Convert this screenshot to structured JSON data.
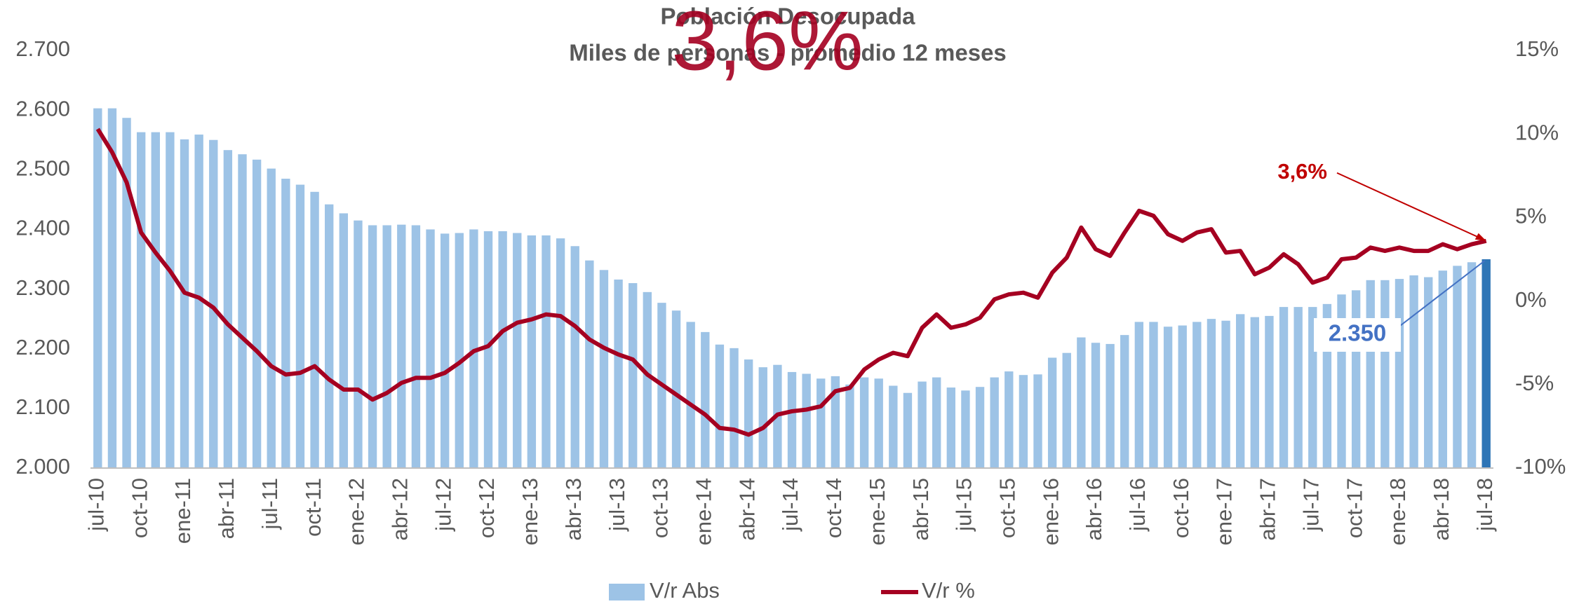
{
  "chart_data": {
    "type": "bar-line",
    "title": "Población Desocupada",
    "subtitle": "Miles de personas - promedio 12 meses",
    "overlay_text": "3,6%",
    "categories": [
      "jul-10",
      null,
      null,
      "oct-10",
      null,
      null,
      "ene-11",
      null,
      null,
      "abr-11",
      null,
      null,
      "jul-11",
      null,
      null,
      "oct-11",
      null,
      null,
      "ene-12",
      null,
      null,
      "abr-12",
      null,
      null,
      "jul-12",
      null,
      null,
      "oct-12",
      null,
      null,
      "ene-13",
      null,
      null,
      "abr-13",
      null,
      null,
      "jul-13",
      null,
      null,
      "oct-13",
      null,
      null,
      "ene-14",
      null,
      null,
      "abr-14",
      null,
      null,
      "jul-14",
      null,
      null,
      "oct-14",
      null,
      null,
      "ene-15",
      null,
      null,
      "abr-15",
      null,
      null,
      "jul-15",
      null,
      null,
      "oct-15",
      null,
      null,
      "ene-16",
      null,
      null,
      "abr-16",
      null,
      null,
      "jul-16",
      null,
      null,
      "oct-16",
      null,
      null,
      "ene-17",
      null,
      null,
      "abr-17",
      null,
      null,
      "jul-17",
      null,
      null,
      "oct-17",
      null,
      null,
      "ene-18",
      null,
      null,
      "abr-18",
      null,
      null,
      "jul-18"
    ],
    "series": [
      {
        "name": "V/r Abs",
        "type": "bar",
        "color": "#9dc3e6",
        "last_color": "#2e75b6",
        "label_color": "#4472c4",
        "values": [
          2603,
          2603,
          2587,
          2563,
          2563,
          2563,
          2551,
          2559,
          2550,
          2533,
          2526,
          2517,
          2502,
          2485,
          2475,
          2463,
          2442,
          2427,
          2415,
          2407,
          2407,
          2408,
          2407,
          2400,
          2393,
          2394,
          2400,
          2397,
          2397,
          2394,
          2390,
          2390,
          2385,
          2372,
          2348,
          2332,
          2316,
          2310,
          2295,
          2277,
          2264,
          2245,
          2228,
          2207,
          2201,
          2182,
          2169,
          2173,
          2161,
          2158,
          2150,
          2154,
          2140,
          2152,
          2150,
          2138,
          2126,
          2145,
          2152,
          2135,
          2130,
          2136,
          2152,
          2162,
          2156,
          2157,
          2185,
          2193,
          2219,
          2210,
          2208,
          2223,
          2245,
          2245,
          2237,
          2239,
          2245,
          2250,
          2247,
          2258,
          2253,
          2255,
          2270,
          2270,
          2270,
          2275,
          2291,
          2298,
          2315,
          2315,
          2317,
          2323,
          2320,
          2331,
          2339,
          2345,
          2350
        ],
        "value_labels": [
          null,
          null,
          null,
          null,
          null,
          null,
          null,
          null,
          null,
          null,
          null,
          null,
          null,
          null,
          null,
          null,
          null,
          null,
          null,
          null,
          null,
          null,
          null,
          null,
          null,
          null,
          null,
          null,
          null,
          null,
          null,
          null,
          null,
          null,
          null,
          null,
          null,
          null,
          null,
          null,
          null,
          null,
          null,
          null,
          null,
          null,
          null,
          null,
          null,
          null,
          null,
          null,
          null,
          null,
          null,
          null,
          null,
          null,
          null,
          null,
          null,
          null,
          null,
          null,
          null,
          null,
          null,
          null,
          null,
          null,
          null,
          null,
          null,
          null,
          null,
          null,
          null,
          null,
          null,
          null,
          null,
          null,
          null,
          null,
          null,
          null,
          null,
          null,
          null,
          null,
          null,
          null,
          null,
          null,
          null,
          null,
          "2.350"
        ]
      },
      {
        "name": "V/r %",
        "type": "line",
        "axis": "y2",
        "color": "#a50021",
        "label_color": "#c00000",
        "values": [
          10.3,
          8.9,
          7.1,
          4.1,
          2.9,
          1.8,
          0.5,
          0.2,
          -0.4,
          -1.4,
          -2.2,
          -3.0,
          -3.9,
          -4.4,
          -4.3,
          -3.9,
          -4.7,
          -5.3,
          -5.3,
          -5.9,
          -5.5,
          -4.9,
          -4.6,
          -4.6,
          -4.3,
          -3.7,
          -3.0,
          -2.7,
          -1.8,
          -1.3,
          -1.1,
          -0.8,
          -0.9,
          -1.5,
          -2.3,
          -2.8,
          -3.2,
          -3.5,
          -4.4,
          -5.0,
          -5.6,
          -6.2,
          -6.8,
          -7.6,
          -7.7,
          -8.0,
          -7.6,
          -6.8,
          -6.6,
          -6.5,
          -6.3,
          -5.4,
          -5.2,
          -4.1,
          -3.5,
          -3.1,
          -3.3,
          -1.6,
          -0.8,
          -1.6,
          -1.4,
          -1.0,
          0.1,
          0.4,
          0.5,
          0.2,
          1.7,
          2.6,
          4.4,
          3.1,
          2.7,
          4.1,
          5.4,
          5.1,
          4.0,
          3.6,
          4.1,
          4.3,
          2.9,
          3.0,
          1.6,
          2.0,
          2.8,
          2.2,
          1.1,
          1.4,
          2.5,
          2.6,
          3.2,
          3.0,
          3.2,
          3.0,
          3.0,
          3.4,
          3.1,
          3.4,
          3.6
        ],
        "value_labels": [
          null,
          null,
          null,
          null,
          null,
          null,
          null,
          null,
          null,
          null,
          null,
          null,
          null,
          null,
          null,
          null,
          null,
          null,
          null,
          null,
          null,
          null,
          null,
          null,
          null,
          null,
          null,
          null,
          null,
          null,
          null,
          null,
          null,
          null,
          null,
          null,
          null,
          null,
          null,
          null,
          null,
          null,
          null,
          null,
          null,
          null,
          null,
          null,
          null,
          null,
          null,
          null,
          null,
          null,
          null,
          null,
          null,
          null,
          null,
          null,
          null,
          null,
          null,
          null,
          null,
          null,
          null,
          null,
          null,
          null,
          null,
          null,
          null,
          null,
          null,
          null,
          null,
          null,
          null,
          null,
          null,
          null,
          null,
          null,
          null,
          null,
          null,
          null,
          null,
          null,
          null,
          null,
          null,
          null,
          null,
          null,
          "3,6%"
        ]
      }
    ],
    "ylim": [
      2000,
      2700
    ],
    "yticks": [
      {
        "value": 2000,
        "label": "2.000"
      },
      {
        "value": 2100,
        "label": "2.100"
      },
      {
        "value": 2200,
        "label": "2.200"
      },
      {
        "value": 2300,
        "label": "2.300"
      },
      {
        "value": 2400,
        "label": "2.400"
      },
      {
        "value": 2500,
        "label": "2.500"
      },
      {
        "value": 2600,
        "label": "2.600"
      },
      {
        "value": 2700,
        "label": "2.700"
      }
    ],
    "y2lim": [
      -10,
      15
    ],
    "y2ticks": [
      {
        "value": -10,
        "label": "-10%"
      },
      {
        "value": -5,
        "label": "-5%"
      },
      {
        "value": 0,
        "label": "0%"
      },
      {
        "value": 5,
        "label": "5%"
      },
      {
        "value": 10,
        "label": "10%"
      },
      {
        "value": 15,
        "label": "15%"
      }
    ],
    "grid": false,
    "legend": "bottom"
  }
}
